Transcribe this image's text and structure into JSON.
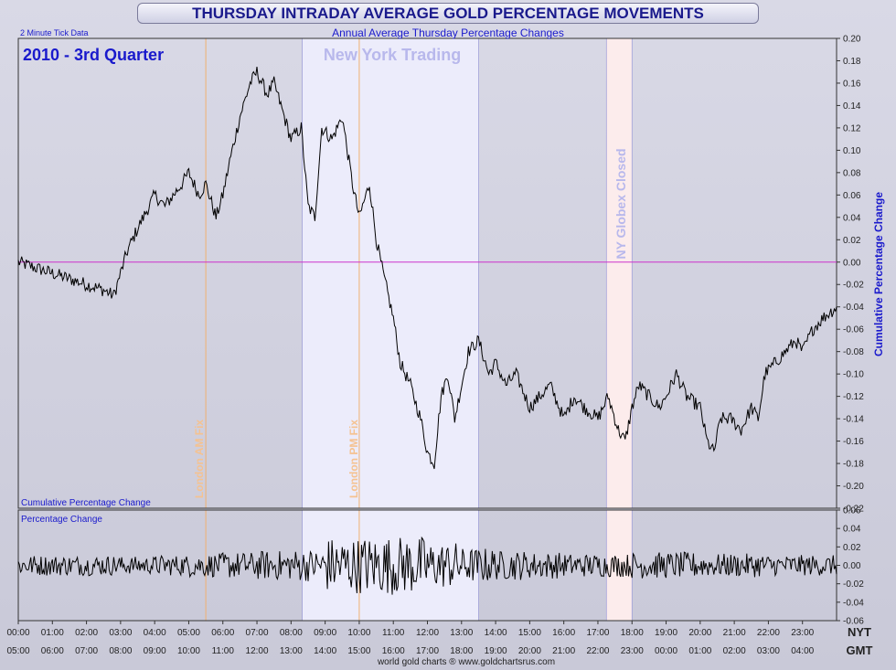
{
  "title": "THURSDAY INTRADAY AVERAGE GOLD PERCENTAGE MOVEMENTS",
  "colors": {
    "title": "#1a1a8c",
    "axis_blue": "#1a1acc",
    "zero_line": "#cc33cc",
    "ny_band": "#ececfb",
    "globex_band": "#fcecec",
    "fix_line": "#f0b070",
    "fix_text": "#f5c290",
    "ny_text": "#b8b8ec"
  },
  "chart_data": [
    {
      "type": "line",
      "title": "Annual Average Thursday Percentage Changes",
      "subtitle": "2 Minute Tick Data",
      "period_label": "2010 - 3rd Quarter",
      "inner_label": "Cumulative Percentage Change",
      "ylabel": "Cumulative Percentage Change",
      "ylim": [
        -0.22,
        0.2
      ],
      "yticks": [
        "0.20",
        "0.18",
        "0.16",
        "0.14",
        "0.12",
        "0.10",
        "0.08",
        "0.06",
        "0.04",
        "0.02",
        "0.00",
        "-0.02",
        "-0.04",
        "-0.06",
        "-0.08",
        "-0.10",
        "-0.12",
        "-0.14",
        "-0.16",
        "-0.18",
        "-0.20",
        "-0.22"
      ],
      "xlim": [
        0,
        24
      ],
      "series": [
        {
          "name": "Cumulative Percentage Change",
          "x": [
            0,
            0.5,
            1,
            1.5,
            2,
            2.5,
            2.8,
            3,
            3.2,
            3.5,
            4,
            4.3,
            4.8,
            5,
            5.3,
            5.5,
            5.8,
            6,
            6.2,
            6.5,
            6.8,
            7,
            7.3,
            7.5,
            7.8,
            8,
            8.3,
            8.5,
            8.7,
            8.9,
            9.2,
            9.5,
            9.8,
            10,
            10.3,
            10.5,
            10.7,
            11,
            11.2,
            11.5,
            11.8,
            12,
            12.2,
            12.4,
            12.6,
            12.8,
            13,
            13.2,
            13.5,
            13.8,
            14,
            14.3,
            14.6,
            15,
            15.3,
            15.6,
            16,
            16.3,
            16.6,
            17,
            17.3,
            17.6,
            17.8,
            18,
            18.2,
            18.5,
            18.8,
            19,
            19.3,
            19.6,
            20,
            20.2,
            20.4,
            20.6,
            20.9,
            21.2,
            21.5,
            21.7,
            21.9,
            22.2,
            22.5,
            22.8,
            23,
            23.3,
            23.6,
            24
          ],
          "values": [
            0,
            -0.005,
            -0.01,
            -0.015,
            -0.02,
            -0.025,
            -0.03,
            -0.01,
            0.01,
            0.03,
            0.06,
            0.05,
            0.07,
            0.08,
            0.06,
            0.07,
            0.04,
            0.06,
            0.09,
            0.13,
            0.16,
            0.17,
            0.15,
            0.16,
            0.13,
            0.11,
            0.12,
            0.05,
            0.04,
            0.12,
            0.11,
            0.13,
            0.07,
            0.04,
            0.07,
            0.02,
            -0.01,
            -0.05,
            -0.09,
            -0.11,
            -0.14,
            -0.17,
            -0.18,
            -0.12,
            -0.1,
            -0.14,
            -0.11,
            -0.08,
            -0.07,
            -0.1,
            -0.09,
            -0.11,
            -0.1,
            -0.13,
            -0.12,
            -0.11,
            -0.14,
            -0.12,
            -0.13,
            -0.14,
            -0.12,
            -0.15,
            -0.16,
            -0.13,
            -0.11,
            -0.12,
            -0.13,
            -0.12,
            -0.1,
            -0.12,
            -0.13,
            -0.16,
            -0.17,
            -0.14,
            -0.14,
            -0.15,
            -0.13,
            -0.14,
            -0.1,
            -0.09,
            -0.08,
            -0.07,
            -0.08,
            -0.06,
            -0.05,
            -0.04
          ]
        }
      ]
    },
    {
      "type": "line",
      "inner_label": "Percentage Change",
      "ylim": [
        -0.06,
        0.06
      ],
      "yticks": [
        "0.06",
        "0.04",
        "0.02",
        "0.00",
        "-0.02",
        "-0.04",
        "-0.06"
      ],
      "xlim": [
        0,
        24
      ],
      "series": [
        {
          "name": "Percentage Change",
          "noise_scale_by_hour": [
            0.007,
            0.007,
            0.007,
            0.006,
            0.007,
            0.008,
            0.009,
            0.01,
            0.011,
            0.019,
            0.02,
            0.02,
            0.016,
            0.012,
            0.01,
            0.009,
            0.008,
            0.008,
            0.009,
            0.009,
            0.008,
            0.008,
            0.007,
            0.007
          ]
        }
      ]
    }
  ],
  "x_axis": {
    "nyt_label": "NYT",
    "gmt_label": "GMT",
    "nyt_ticks": [
      "00:00",
      "01:00",
      "02:00",
      "03:00",
      "04:00",
      "05:00",
      "06:00",
      "07:00",
      "08:00",
      "09:00",
      "10:00",
      "11:00",
      "12:00",
      "13:00",
      "14:00",
      "15:00",
      "16:00",
      "17:00",
      "18:00",
      "19:00",
      "20:00",
      "21:00",
      "22:00",
      "23:00"
    ],
    "gmt_ticks": [
      "05:00",
      "06:00",
      "07:00",
      "08:00",
      "09:00",
      "10:00",
      "11:00",
      "12:00",
      "13:00",
      "14:00",
      "15:00",
      "16:00",
      "17:00",
      "18:00",
      "19:00",
      "20:00",
      "21:00",
      "22:00",
      "23:00",
      "00:00",
      "01:00",
      "02:00",
      "03:00",
      "04:00"
    ]
  },
  "annotations": {
    "ny_trading": {
      "label": "New York Trading",
      "start_hour": 8.33,
      "end_hour": 13.5
    },
    "globex_closed": {
      "label": "NY Globex Closed",
      "start_hour": 17.25,
      "end_hour": 18
    },
    "am_fix": {
      "label": "London AM Fix",
      "hour": 5.5
    },
    "pm_fix": {
      "label": "London PM Fix",
      "hour": 10
    }
  },
  "footer": "world gold charts ® www.goldchartsrus.com"
}
